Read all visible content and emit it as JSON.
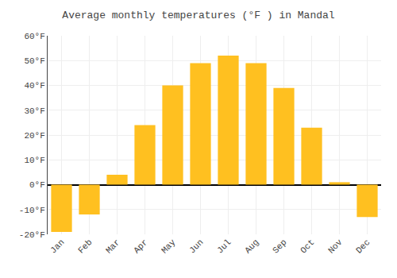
{
  "chart_data": {
    "type": "bar",
    "title": "Average monthly temperatures (°F ) in Mandal",
    "categories": [
      "Jan",
      "Feb",
      "Mar",
      "Apr",
      "May",
      "Jun",
      "Jul",
      "Aug",
      "Sep",
      "Oct",
      "Nov",
      "Dec"
    ],
    "values": [
      -19,
      -12,
      4,
      24,
      40,
      49,
      52,
      49,
      39,
      23,
      1,
      -13
    ],
    "color": "#FFC020",
    "ylim": [
      -20,
      60
    ],
    "yticks": [
      {
        "value": -20,
        "label": "-20°F"
      },
      {
        "value": -10,
        "label": "-10°F"
      },
      {
        "value": 0,
        "label": "0°F"
      },
      {
        "value": 10,
        "label": "10°F"
      },
      {
        "value": 20,
        "label": "20°F"
      },
      {
        "value": 30,
        "label": "30°F"
      },
      {
        "value": 40,
        "label": "40°F"
      },
      {
        "value": 50,
        "label": "50°F"
      },
      {
        "value": 60,
        "label": "60°F"
      }
    ],
    "grid": true
  }
}
